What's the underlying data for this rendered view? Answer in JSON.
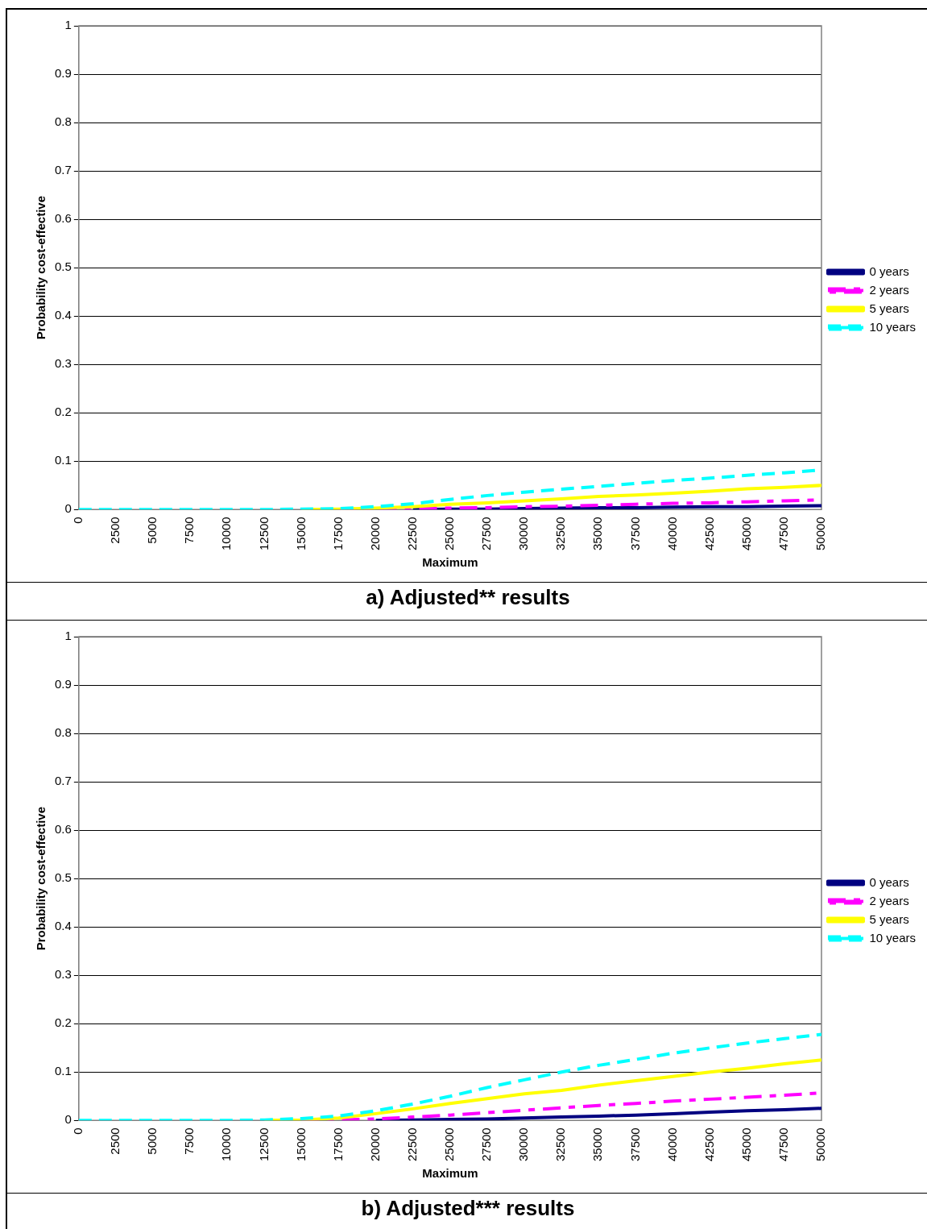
{
  "chart_data": [
    {
      "type": "line",
      "title": "a) Adjusted** results",
      "xlabel": "Maximum",
      "ylabel": "Probability cost-effective",
      "x": [
        0,
        2500,
        5000,
        7500,
        10000,
        12500,
        15000,
        17500,
        20000,
        22500,
        25000,
        27500,
        30000,
        32500,
        35000,
        37500,
        40000,
        42500,
        45000,
        47500,
        50000
      ],
      "xlim": [
        0,
        50000
      ],
      "xticks": [
        0,
        2500,
        5000,
        7500,
        10000,
        12500,
        15000,
        17500,
        20000,
        22500,
        25000,
        27500,
        30000,
        32500,
        35000,
        37500,
        40000,
        42500,
        45000,
        47500,
        50000
      ],
      "ylim": [
        0,
        1
      ],
      "yticks": [
        0,
        0.1,
        0.2,
        0.3,
        0.4,
        0.5,
        0.6,
        0.7,
        0.8,
        0.9,
        1
      ],
      "grid": "y",
      "legend": "right",
      "marker": "none",
      "series": [
        {
          "name": "0 years",
          "color": "#000080",
          "line_style": "solid",
          "values": [
            null,
            null,
            null,
            null,
            null,
            null,
            null,
            null,
            null,
            0,
            0.001,
            0.001,
            0.002,
            0.003,
            0.004,
            0.004,
            0.005,
            0.006,
            0.006,
            0.007,
            0.008
          ]
        },
        {
          "name": "2 years",
          "color": "#ff00ff",
          "line_style": "dashdot",
          "values": [
            null,
            null,
            null,
            null,
            null,
            null,
            null,
            0,
            0.001,
            0.002,
            0.003,
            0.004,
            0.006,
            0.007,
            0.009,
            0.011,
            0.013,
            0.014,
            0.016,
            0.018,
            0.02
          ]
        },
        {
          "name": "5 years",
          "color": "#ffff00",
          "line_style": "solid",
          "values": [
            null,
            null,
            null,
            null,
            null,
            null,
            0,
            0.001,
            0.003,
            0.006,
            0.011,
            0.014,
            0.018,
            0.022,
            0.027,
            0.03,
            0.034,
            0.038,
            0.043,
            0.046,
            0.05
          ]
        },
        {
          "name": "10 years",
          "color": "#00ffff",
          "line_style": "dashed",
          "values": [
            0,
            0,
            0,
            0,
            0,
            0,
            0.001,
            0.002,
            0.006,
            0.012,
            0.021,
            0.029,
            0.036,
            0.042,
            0.048,
            0.054,
            0.06,
            0.065,
            0.071,
            0.076,
            0.082
          ]
        }
      ]
    },
    {
      "type": "line",
      "title": "b) Adjusted*** results",
      "xlabel": "Maximum",
      "ylabel": "Probability cost-effective",
      "x": [
        0,
        2500,
        5000,
        7500,
        10000,
        12500,
        15000,
        17500,
        20000,
        22500,
        25000,
        27500,
        30000,
        32500,
        35000,
        37500,
        40000,
        42500,
        45000,
        47500,
        50000
      ],
      "xlim": [
        0,
        50000
      ],
      "xticks": [
        0,
        2500,
        5000,
        7500,
        10000,
        12500,
        15000,
        17500,
        20000,
        22500,
        25000,
        27500,
        30000,
        32500,
        35000,
        37500,
        40000,
        42500,
        45000,
        47500,
        50000
      ],
      "ylim": [
        0,
        1
      ],
      "yticks": [
        0,
        0.1,
        0.2,
        0.3,
        0.4,
        0.5,
        0.6,
        0.7,
        0.8,
        0.9,
        1
      ],
      "grid": "y",
      "legend": "right",
      "marker": "none",
      "series": [
        {
          "name": "0 years",
          "color": "#000080",
          "line_style": "solid",
          "values": [
            null,
            null,
            null,
            null,
            null,
            null,
            null,
            null,
            0,
            0.001,
            0.002,
            0.003,
            0.005,
            0.007,
            0.009,
            0.011,
            0.014,
            0.017,
            0.02,
            0.022,
            0.025
          ]
        },
        {
          "name": "2 years",
          "color": "#ff00ff",
          "line_style": "dashdot",
          "values": [
            null,
            null,
            null,
            null,
            null,
            null,
            0,
            0.001,
            0.003,
            0.007,
            0.011,
            0.016,
            0.021,
            0.026,
            0.031,
            0.035,
            0.04,
            0.044,
            0.048,
            0.052,
            0.057
          ]
        },
        {
          "name": "5 years",
          "color": "#ffff00",
          "line_style": "solid",
          "values": [
            null,
            null,
            null,
            null,
            null,
            0,
            0.001,
            0.005,
            0.014,
            0.024,
            0.035,
            0.045,
            0.055,
            0.062,
            0.073,
            0.082,
            0.091,
            0.1,
            0.108,
            0.117,
            0.125
          ]
        },
        {
          "name": "10 years",
          "color": "#00ffff",
          "line_style": "dashed",
          "values": [
            0,
            0,
            0,
            0,
            0,
            0.001,
            0.004,
            0.009,
            0.02,
            0.034,
            0.05,
            0.068,
            0.084,
            0.1,
            0.114,
            0.126,
            0.139,
            0.15,
            0.16,
            0.169,
            0.178
          ]
        }
      ]
    }
  ]
}
